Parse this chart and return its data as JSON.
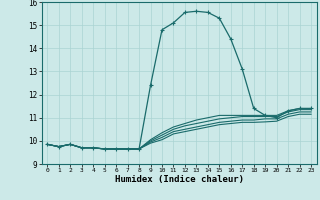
{
  "title": "",
  "xlabel": "Humidex (Indice chaleur)",
  "background_color": "#cce9e8",
  "grid_color": "#aad4d3",
  "line_color": "#1a6b6b",
  "xlim": [
    -0.5,
    23.5
  ],
  "ylim": [
    9,
    16
  ],
  "yticks": [
    9,
    10,
    11,
    12,
    13,
    14,
    15,
    16
  ],
  "xticks": [
    0,
    1,
    2,
    3,
    4,
    5,
    6,
    7,
    8,
    9,
    10,
    11,
    12,
    13,
    14,
    15,
    16,
    17,
    18,
    19,
    20,
    21,
    22,
    23
  ],
  "lines": [
    {
      "x": [
        0,
        1,
        2,
        3,
        4,
        5,
        6,
        7,
        8,
        9,
        10,
        11,
        12,
        13,
        14,
        15,
        16,
        17,
        18,
        19,
        20,
        21,
        22,
        23
      ],
      "y": [
        9.85,
        9.75,
        9.85,
        9.7,
        9.7,
        9.65,
        9.65,
        9.65,
        9.65,
        12.4,
        14.8,
        15.1,
        15.55,
        15.6,
        15.55,
        15.3,
        14.4,
        13.1,
        11.4,
        11.1,
        11.0,
        11.3,
        11.4,
        11.4
      ],
      "marker": "+",
      "linewidth": 0.9,
      "markersize": 3.5
    },
    {
      "x": [
        0,
        1,
        2,
        3,
        4,
        5,
        6,
        7,
        8,
        9,
        10,
        11,
        12,
        13,
        14,
        15,
        16,
        17,
        18,
        19,
        20,
        21,
        22,
        23
      ],
      "y": [
        9.85,
        9.75,
        9.85,
        9.7,
        9.7,
        9.65,
        9.65,
        9.65,
        9.65,
        10.05,
        10.35,
        10.6,
        10.75,
        10.9,
        11.0,
        11.1,
        11.1,
        11.1,
        11.1,
        11.1,
        11.1,
        11.3,
        11.4,
        11.4
      ],
      "marker": null,
      "linewidth": 0.8,
      "markersize": 0
    },
    {
      "x": [
        0,
        1,
        2,
        3,
        4,
        5,
        6,
        7,
        8,
        9,
        10,
        11,
        12,
        13,
        14,
        15,
        16,
        17,
        18,
        19,
        20,
        21,
        22,
        23
      ],
      "y": [
        9.85,
        9.75,
        9.85,
        9.7,
        9.7,
        9.65,
        9.65,
        9.65,
        9.65,
        10.0,
        10.25,
        10.5,
        10.65,
        10.75,
        10.85,
        10.95,
        11.0,
        11.05,
        11.05,
        11.05,
        11.05,
        11.25,
        11.35,
        11.35
      ],
      "marker": null,
      "linewidth": 0.8,
      "markersize": 0
    },
    {
      "x": [
        0,
        1,
        2,
        3,
        4,
        5,
        6,
        7,
        8,
        9,
        10,
        11,
        12,
        13,
        14,
        15,
        16,
        17,
        18,
        19,
        20,
        21,
        22,
        23
      ],
      "y": [
        9.85,
        9.75,
        9.85,
        9.7,
        9.7,
        9.65,
        9.65,
        9.65,
        9.65,
        9.95,
        10.15,
        10.4,
        10.5,
        10.6,
        10.7,
        10.8,
        10.85,
        10.9,
        10.9,
        10.95,
        10.95,
        11.15,
        11.25,
        11.25
      ],
      "marker": null,
      "linewidth": 0.8,
      "markersize": 0
    },
    {
      "x": [
        0,
        1,
        2,
        3,
        4,
        5,
        6,
        7,
        8,
        9,
        10,
        11,
        12,
        13,
        14,
        15,
        16,
        17,
        18,
        19,
        20,
        21,
        22,
        23
      ],
      "y": [
        9.85,
        9.75,
        9.85,
        9.7,
        9.7,
        9.65,
        9.65,
        9.65,
        9.65,
        9.9,
        10.05,
        10.3,
        10.4,
        10.5,
        10.6,
        10.7,
        10.75,
        10.8,
        10.8,
        10.82,
        10.85,
        11.05,
        11.15,
        11.15
      ],
      "marker": null,
      "linewidth": 0.8,
      "markersize": 0
    }
  ]
}
